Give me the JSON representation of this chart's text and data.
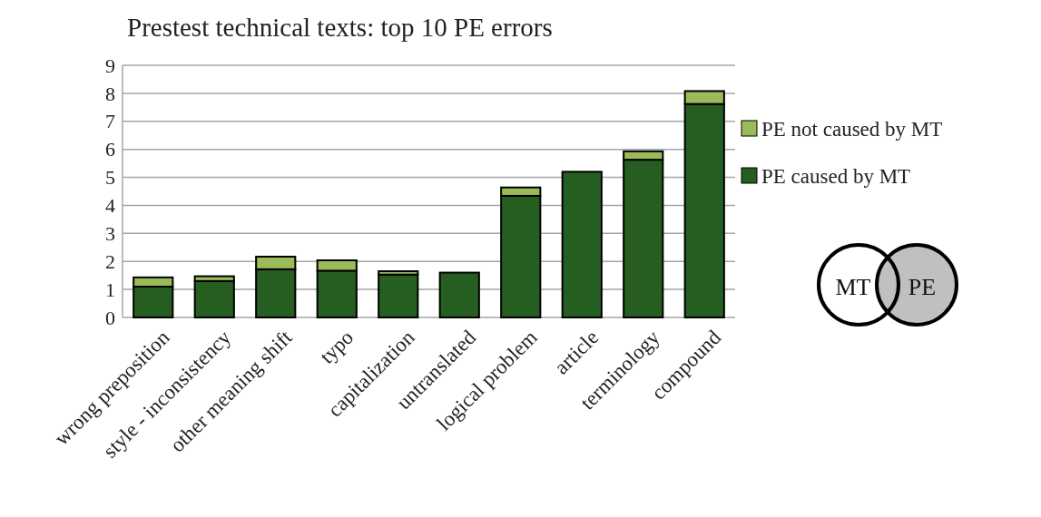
{
  "chart_data": {
    "type": "bar",
    "title": "Prestest technical texts: top 10 PE errors",
    "categories": [
      "wrong preposition",
      "style - inconsistency",
      "other meaning shift",
      "typo",
      "capitalization",
      "untranslated",
      "logical problem",
      "article",
      "terminology",
      "compound"
    ],
    "stacked": true,
    "series": [
      {
        "name": "PE caused by MT",
        "color": "#265e22",
        "values": [
          1.1,
          1.3,
          1.72,
          1.67,
          1.53,
          1.6,
          4.34,
          5.2,
          5.63,
          7.62
        ]
      },
      {
        "name": "PE not caused by MT",
        "color": "#9bbb59",
        "values": [
          0.33,
          0.17,
          0.45,
          0.37,
          0.12,
          0,
          0.3,
          0,
          0.3,
          0.46
        ]
      }
    ],
    "ylim": [
      0,
      9
    ],
    "yticks": [
      0,
      1,
      2,
      3,
      4,
      5,
      6,
      7,
      8,
      9
    ],
    "grid": "y",
    "legend": "right",
    "annotations": [
      "MT",
      "PE"
    ]
  }
}
